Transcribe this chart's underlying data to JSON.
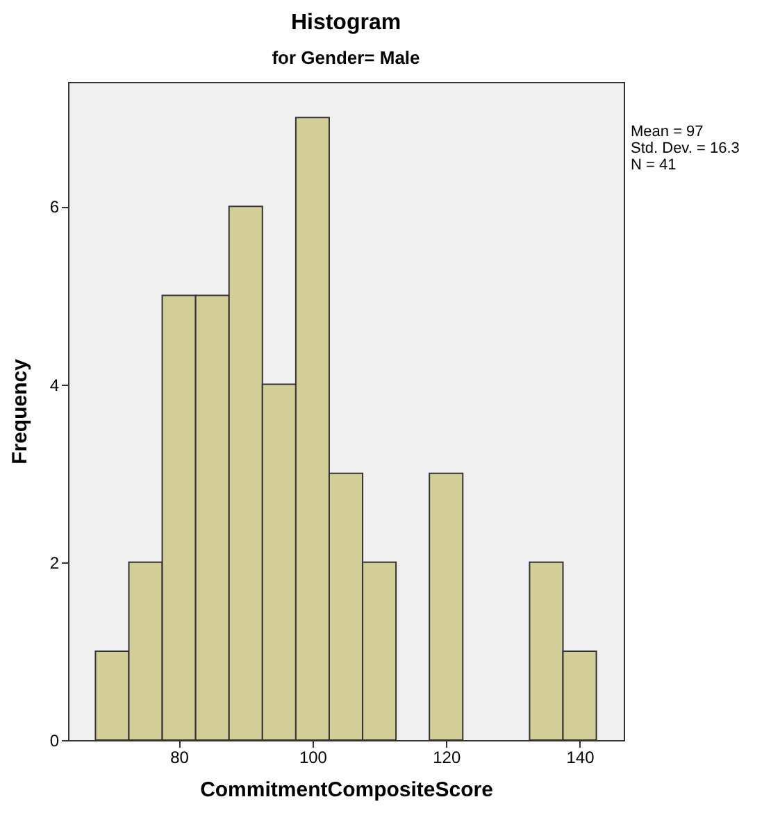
{
  "chart_data": {
    "type": "histogram",
    "title": "Histogram",
    "subtitle": "for Gender= Male",
    "xlabel": "CommitmentCompositeScore",
    "ylabel": "Frequency",
    "bins": [
      67.5,
      72.5,
      77.5,
      82.5,
      87.5,
      92.5,
      97.5,
      102.5,
      107.5,
      112.5,
      117.5,
      122.5,
      127.5,
      132.5,
      137.5,
      142.5
    ],
    "values": [
      1,
      2,
      5,
      5,
      6,
      4,
      7,
      3,
      2,
      0,
      3,
      0,
      0,
      2,
      1
    ],
    "color": "#d3ce97",
    "xlim": [
      63.4,
      146.6
    ],
    "xticks": [
      80,
      100,
      120,
      140
    ],
    "ylim": [
      0,
      7.4
    ],
    "yticks": [
      0,
      2,
      4,
      6
    ],
    "grid": false,
    "annotations": [
      "Mean = 97",
      "Std. Dev. = 16.3",
      "N = 41"
    ]
  }
}
